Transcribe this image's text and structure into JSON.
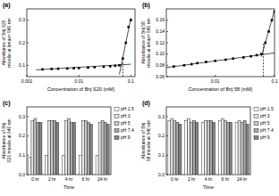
{
  "chart_data": [
    {
      "type": "line",
      "title": "(a)",
      "xlabel": "Concentration of Brij S20 (mM)",
      "ylabel": "Absorbance of Brij S20 micelle at λmax= 540 nm",
      "log": "x",
      "xlim": [
        0.001,
        0.12
      ],
      "xticks": [
        0.001,
        0.01,
        0.1
      ],
      "ylim": [
        0.05,
        0.35
      ],
      "yticks": [
        0.1,
        0.2,
        0.3
      ],
      "series": [
        {
          "color": "#000000",
          "marker": "square",
          "x": [
            0.002,
            0.003,
            0.004,
            0.006,
            0.008,
            0.01,
            0.015,
            0.02,
            0.03,
            0.04,
            0.05,
            0.06,
            0.07,
            0.08,
            0.09,
            0.1
          ],
          "values": [
            0.082,
            0.084,
            0.085,
            0.086,
            0.087,
            0.088,
            0.09,
            0.092,
            0.094,
            0.096,
            0.098,
            0.1,
            0.13,
            0.2,
            0.27,
            0.3
          ]
        },
        {
          "color": "#000000",
          "line_style": "solid",
          "x": [
            0.0015,
            0.1
          ],
          "values": [
            0.08,
            0.105
          ]
        },
        {
          "color": "#000000",
          "line_style": "solid",
          "x": [
            0.06,
            0.1
          ],
          "values": [
            0.06,
            0.31
          ]
        },
        {
          "color": "#000000",
          "line_style": "dashed",
          "x": [
            0.07,
            0.07
          ],
          "values": [
            0.05,
            0.12
          ]
        }
      ]
    },
    {
      "type": "line",
      "title": "(b)",
      "xlabel": "Concentration of Brij 58 (mM)",
      "ylabel": "Absorbance of Brij 58 micelle at λmax= 540 nm",
      "log": "x",
      "xlim": [
        0.0015,
        0.1
      ],
      "xticks": [
        0.01,
        0.1
      ],
      "ylim": [
        0.06,
        0.18
      ],
      "yticks": [
        0.06,
        0.08,
        {
          "value": 0.1,
          "label": "0.10"
        },
        0.12,
        0.14,
        0.16
      ],
      "series": [
        {
          "color": "#000000",
          "marker": "square",
          "x": [
            0.002,
            0.003,
            0.004,
            0.005,
            0.007,
            0.01,
            0.015,
            0.02,
            0.03,
            0.04,
            0.05,
            0.06,
            0.07,
            0.08,
            0.09,
            0.1
          ],
          "values": [
            0.078,
            0.08,
            0.082,
            0.084,
            0.086,
            0.088,
            0.09,
            0.092,
            0.094,
            0.096,
            0.098,
            0.1,
            0.12,
            0.14,
            0.16,
            0.175
          ]
        },
        {
          "color": "#000000",
          "line_style": "solid",
          "x": [
            0.0015,
            0.1
          ],
          "values": [
            0.076,
            0.102
          ]
        },
        {
          "color": "#000000",
          "line_style": "solid",
          "x": [
            0.06,
            0.1
          ],
          "values": [
            0.095,
            0.178
          ]
        },
        {
          "color": "#000000",
          "line_style": "dashed",
          "x": [
            0.065,
            0.065
          ],
          "values": [
            0.06,
            0.12
          ]
        }
      ]
    },
    {
      "type": "bar",
      "title": "(c)",
      "xlabel": "Time",
      "ylabel": "Absorbance of Brij S20 micelle at 540 nm",
      "legend": "right",
      "categories": [
        "0 hr",
        "2 hr",
        "4 hr",
        "6 hr",
        "24 hr"
      ],
      "ylim": [
        0,
        0.35
      ],
      "yticks": [
        {
          "value": 0,
          "label": "0.0"
        },
        0.1,
        0.2,
        0.3
      ],
      "series": [
        {
          "name": "pH 1.5",
          "color": "#ffffff",
          "values": [
            0.09,
            0.1,
            0.1,
            0.1,
            0.1
          ]
        },
        {
          "name": "pH 3",
          "color": "#e6e6e6",
          "values": [
            0.28,
            0.28,
            0.28,
            0.28,
            0.27
          ]
        },
        {
          "name": "pH 5",
          "color": "#c8c8c8",
          "values": [
            0.29,
            0.28,
            0.29,
            0.28,
            0.28
          ]
        },
        {
          "name": "pH 7.4",
          "color": "#a8a8a8",
          "values": [
            0.27,
            0.28,
            0.27,
            0.27,
            0.27
          ]
        },
        {
          "name": "pH 9",
          "color": "#858585",
          "values": [
            0.27,
            0.27,
            0.27,
            0.26,
            0.26
          ]
        }
      ]
    },
    {
      "type": "bar",
      "title": "(d)",
      "xlabel": "Time",
      "ylabel": "Absorbance of Brij 58 micelle at 540 nm",
      "legend": "right",
      "categories": [
        "0 hr",
        "2 hr",
        "4 hr",
        "6 hr",
        "24 hr"
      ],
      "ylim": [
        0,
        0.35
      ],
      "yticks": [
        {
          "value": 0,
          "label": "0.0"
        },
        0.1,
        0.2,
        0.3
      ],
      "series": [
        {
          "name": "pH 1.5",
          "color": "#ffffff",
          "values": [
            0.28,
            0.28,
            0.27,
            0.28,
            0.27
          ]
        },
        {
          "name": "pH 3",
          "color": "#e6e6e6",
          "values": [
            0.29,
            0.29,
            0.28,
            0.29,
            0.28
          ]
        },
        {
          "name": "pH 5",
          "color": "#c8c8c8",
          "values": [
            0.28,
            0.27,
            0.28,
            0.28,
            0.27
          ]
        },
        {
          "name": "pH 7.4",
          "color": "#a8a8a8",
          "values": [
            0.27,
            0.28,
            0.28,
            0.27,
            0.28
          ]
        },
        {
          "name": "pH 9",
          "color": "#858585",
          "values": [
            0.26,
            0.27,
            0.27,
            0.27,
            0.26
          ]
        }
      ]
    }
  ]
}
